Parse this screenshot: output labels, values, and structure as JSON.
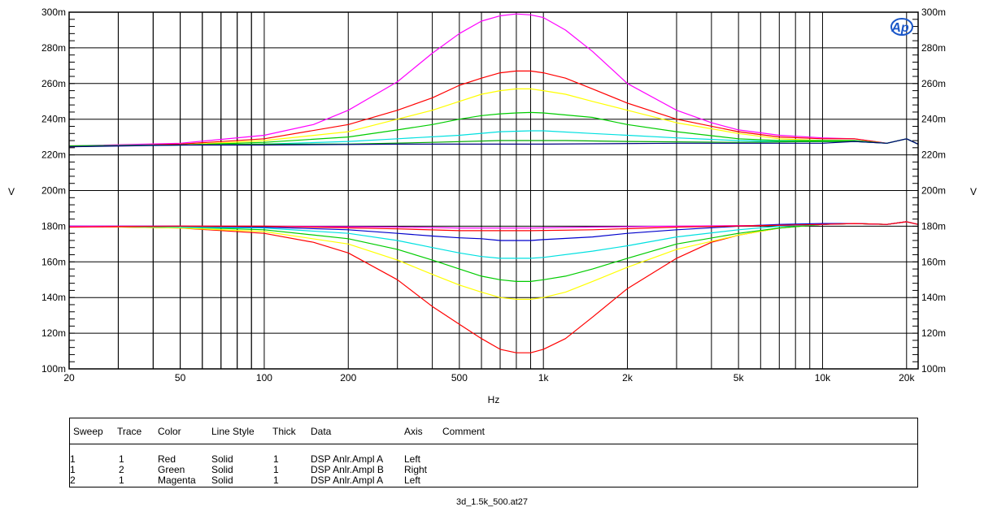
{
  "chart_data": {
    "type": "line",
    "xlabel": "Hz",
    "ylabel_left": "V",
    "ylabel_right": "V",
    "x_scale": "log",
    "xlim": [
      20,
      22000
    ],
    "ylim": [
      0.1,
      0.3
    ],
    "x_ticks": [
      {
        "value": 20,
        "label": "20"
      },
      {
        "value": 50,
        "label": "50"
      },
      {
        "value": 100,
        "label": "100"
      },
      {
        "value": 200,
        "label": "200"
      },
      {
        "value": 500,
        "label": "500"
      },
      {
        "value": 1000,
        "label": "1k"
      },
      {
        "value": 2000,
        "label": "2k"
      },
      {
        "value": 5000,
        "label": "5k"
      },
      {
        "value": 10000,
        "label": "10k"
      },
      {
        "value": 20000,
        "label": "20k"
      }
    ],
    "y_ticks": [
      {
        "value": 0.1,
        "label": "100m"
      },
      {
        "value": 0.12,
        "label": "120m"
      },
      {
        "value": 0.14,
        "label": "140m"
      },
      {
        "value": 0.16,
        "label": "160m"
      },
      {
        "value": 0.18,
        "label": "180m"
      },
      {
        "value": 0.2,
        "label": "200m"
      },
      {
        "value": 0.22,
        "label": "220m"
      },
      {
        "value": 0.24,
        "label": "240m"
      },
      {
        "value": 0.26,
        "label": "260m"
      },
      {
        "value": 0.28,
        "label": "280m"
      },
      {
        "value": 0.3,
        "label": "300m"
      }
    ],
    "grid": true,
    "series": [
      {
        "color": "#ff00ff",
        "x": [
          20,
          50,
          100,
          150,
          200,
          300,
          400,
          500,
          600,
          700,
          800,
          900,
          1000,
          1200,
          1500,
          2000,
          3000,
          4000,
          5000,
          7000,
          10000,
          13000,
          17000,
          20000,
          22000
        ],
        "y": [
          0.225,
          0.2265,
          0.231,
          0.237,
          0.245,
          0.261,
          0.277,
          0.288,
          0.295,
          0.298,
          0.299,
          0.2985,
          0.297,
          0.29,
          0.278,
          0.26,
          0.245,
          0.238,
          0.234,
          0.231,
          0.2295,
          0.229,
          0.2265,
          0.229,
          0.226
        ]
      },
      {
        "color": "#ff0000",
        "x": [
          20,
          50,
          100,
          200,
          300,
          400,
          500,
          600,
          700,
          800,
          900,
          1000,
          1200,
          1500,
          2000,
          3000,
          5000,
          7000,
          10000,
          13000,
          17000,
          20000,
          22000
        ],
        "y": [
          0.2245,
          0.226,
          0.229,
          0.237,
          0.245,
          0.252,
          0.259,
          0.263,
          0.266,
          0.267,
          0.267,
          0.266,
          0.263,
          0.257,
          0.249,
          0.24,
          0.233,
          0.23,
          0.229,
          0.229,
          0.2265,
          0.229,
          0.226
        ]
      },
      {
        "color": "#ffff00",
        "x": [
          20,
          50,
          100,
          200,
          300,
          400,
          500,
          600,
          700,
          800,
          900,
          1000,
          1200,
          1500,
          2000,
          3000,
          5000,
          7000,
          10000,
          13000,
          17000,
          20000,
          22000
        ],
        "y": [
          0.225,
          0.2255,
          0.228,
          0.233,
          0.24,
          0.245,
          0.25,
          0.254,
          0.256,
          0.257,
          0.257,
          0.256,
          0.254,
          0.25,
          0.245,
          0.238,
          0.232,
          0.229,
          0.228,
          0.228,
          0.2265,
          0.229,
          0.226
        ]
      },
      {
        "color": "#00cc00",
        "x": [
          20,
          50,
          100,
          200,
          300,
          400,
          500,
          600,
          700,
          800,
          900,
          1000,
          1500,
          2000,
          3000,
          5000,
          7000,
          10000,
          13000,
          17000,
          20000,
          22000
        ],
        "y": [
          0.225,
          0.2255,
          0.227,
          0.23,
          0.234,
          0.237,
          0.24,
          0.242,
          0.243,
          0.2435,
          0.2438,
          0.2435,
          0.241,
          0.237,
          0.233,
          0.229,
          0.228,
          0.228,
          0.228,
          0.2265,
          0.229,
          0.226
        ]
      },
      {
        "color": "#00e0e0",
        "x": [
          20,
          50,
          100,
          200,
          300,
          500,
          700,
          900,
          1000,
          1500,
          2000,
          3000,
          5000,
          7000,
          10000,
          13000,
          17000,
          20000,
          22000
        ],
        "y": [
          0.225,
          0.2255,
          0.226,
          0.2275,
          0.229,
          0.231,
          0.233,
          0.2335,
          0.2335,
          0.232,
          0.231,
          0.2295,
          0.228,
          0.2275,
          0.2275,
          0.2275,
          0.2265,
          0.229,
          0.226
        ]
      },
      {
        "color": "#00aa00",
        "x": [
          20,
          50,
          100,
          200,
          400,
          700,
          900,
          1200,
          2000,
          5000,
          10000,
          13000,
          17000,
          20000,
          22000
        ],
        "y": [
          0.225,
          0.2255,
          0.226,
          0.226,
          0.227,
          0.228,
          0.228,
          0.228,
          0.2275,
          0.227,
          0.2275,
          0.2275,
          0.2265,
          0.229,
          0.226
        ]
      },
      {
        "color": "#000080",
        "x": [
          20,
          50,
          100,
          300,
          1000,
          3000,
          10000,
          13000,
          17000,
          20000,
          22000
        ],
        "y": [
          0.2245,
          0.2255,
          0.2255,
          0.226,
          0.226,
          0.2265,
          0.2265,
          0.2275,
          0.2265,
          0.229,
          0.226
        ]
      },
      {
        "color": "#ff0000",
        "x": [
          20,
          50,
          100,
          150,
          200,
          300,
          400,
          500,
          600,
          700,
          800,
          900,
          1000,
          1200,
          1500,
          2000,
          3000,
          4000,
          5000,
          7000,
          10000,
          13000,
          17000,
          20000,
          22000
        ],
        "y": [
          0.18,
          0.179,
          0.176,
          0.171,
          0.165,
          0.15,
          0.135,
          0.125,
          0.117,
          0.111,
          0.109,
          0.109,
          0.111,
          0.117,
          0.129,
          0.145,
          0.162,
          0.171,
          0.175,
          0.179,
          0.181,
          0.1815,
          0.181,
          0.1825,
          0.181
        ]
      },
      {
        "color": "#ffff00",
        "x": [
          20,
          50,
          100,
          200,
          300,
          400,
          500,
          600,
          700,
          800,
          900,
          1000,
          1200,
          1500,
          2000,
          3000,
          5000,
          7000,
          10000,
          13000,
          17000,
          20000,
          22000
        ],
        "y": [
          0.18,
          0.179,
          0.177,
          0.17,
          0.161,
          0.153,
          0.147,
          0.143,
          0.14,
          0.139,
          0.139,
          0.14,
          0.143,
          0.149,
          0.157,
          0.167,
          0.175,
          0.179,
          0.181,
          0.1815,
          0.181,
          0.1825,
          0.181
        ]
      },
      {
        "color": "#00cc00",
        "x": [
          20,
          50,
          100,
          200,
          300,
          400,
          500,
          600,
          700,
          800,
          900,
          1000,
          1200,
          1500,
          2000,
          3000,
          5000,
          7000,
          10000,
          13000,
          17000,
          20000,
          22000
        ],
        "y": [
          0.18,
          0.1795,
          0.178,
          0.173,
          0.167,
          0.161,
          0.156,
          0.152,
          0.15,
          0.149,
          0.149,
          0.15,
          0.152,
          0.156,
          0.162,
          0.17,
          0.176,
          0.179,
          0.181,
          0.1815,
          0.181,
          0.1825,
          0.181
        ]
      },
      {
        "color": "#00e0e0",
        "x": [
          20,
          50,
          100,
          200,
          300,
          400,
          500,
          600,
          700,
          900,
          1000,
          1500,
          2000,
          3000,
          5000,
          7000,
          10000,
          13000,
          17000,
          20000,
          22000
        ],
        "y": [
          0.18,
          0.1795,
          0.179,
          0.176,
          0.172,
          0.168,
          0.165,
          0.163,
          0.162,
          0.162,
          0.1625,
          0.166,
          0.169,
          0.174,
          0.178,
          0.18,
          0.181,
          0.1815,
          0.181,
          0.1825,
          0.181
        ]
      },
      {
        "color": "#0000cc",
        "x": [
          20,
          50,
          100,
          200,
          300,
          400,
          500,
          600,
          700,
          900,
          1000,
          1500,
          2000,
          3000,
          5000,
          7000,
          10000,
          13000,
          17000,
          20000,
          22000
        ],
        "y": [
          0.18,
          0.18,
          0.1795,
          0.178,
          0.176,
          0.1745,
          0.1735,
          0.173,
          0.172,
          0.172,
          0.1725,
          0.174,
          0.176,
          0.178,
          0.18,
          0.181,
          0.1815,
          0.1815,
          0.181,
          0.1825,
          0.181
        ]
      },
      {
        "color": "#ff00ff",
        "x": [
          20,
          50,
          100,
          300,
          500,
          900,
          1500,
          3000,
          7000,
          10000,
          13000,
          17000,
          20000,
          22000
        ],
        "y": [
          0.18,
          0.18,
          0.18,
          0.1795,
          0.179,
          0.179,
          0.1795,
          0.18,
          0.1805,
          0.181,
          0.1815,
          0.181,
          0.1825,
          0.181
        ]
      },
      {
        "color": "#ff0000",
        "x": [
          20,
          50,
          100,
          300,
          500,
          900,
          1500,
          3000,
          7000,
          10000,
          13000,
          17000,
          20000,
          22000
        ],
        "y": [
          0.1795,
          0.18,
          0.18,
          0.1785,
          0.1775,
          0.1775,
          0.178,
          0.1795,
          0.1805,
          0.181,
          0.1815,
          0.181,
          0.1825,
          0.181
        ]
      }
    ]
  },
  "logo_text": "Ap",
  "legend": {
    "headers": [
      "Sweep",
      "Trace",
      "Color",
      "Line Style",
      "Thick",
      "Data",
      "Axis",
      "Comment"
    ],
    "rows": [
      [
        "1",
        "1",
        "Red",
        "Solid",
        "1",
        "DSP Anlr.Ampl A",
        "Left",
        ""
      ],
      [
        "1",
        "2",
        "Green",
        "Solid",
        "1",
        "DSP Anlr.Ampl B",
        "Right",
        ""
      ],
      [
        "2",
        "1",
        "Magenta",
        "Solid",
        "1",
        "DSP Anlr.Ampl A",
        "Left",
        ""
      ]
    ]
  },
  "footer": "3d_1.5k_500.at27"
}
